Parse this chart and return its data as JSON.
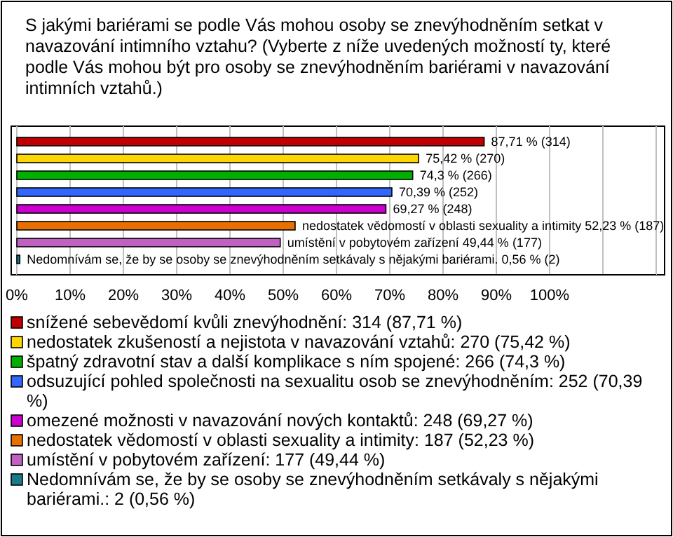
{
  "chart_data": {
    "type": "bar",
    "orientation": "horizontal",
    "title": "S jakými bariérami se podle Vás mohou osoby se znevýhodněním setkat v navazování intimního vztahu? (Vyberte z níže uvedených možností ty, které podle Vás mohou být pro osoby se znevýhodněním bariérami v navazování intimních vztahů.)",
    "categories": [
      null
    ],
    "xlim": [
      0,
      120
    ],
    "xticks": [
      {
        "value": 0,
        "label": "0%"
      },
      {
        "value": 10,
        "label": "10%"
      },
      {
        "value": 20,
        "label": "20%"
      },
      {
        "value": 30,
        "label": "30%"
      },
      {
        "value": 40,
        "label": "40%"
      },
      {
        "value": 50,
        "label": "50%"
      },
      {
        "value": 60,
        "label": "60%"
      },
      {
        "value": 70,
        "label": "70%"
      },
      {
        "value": 80,
        "label": "80%"
      },
      {
        "value": 90,
        "label": "90%"
      },
      {
        "value": 100,
        "label": "100%"
      },
      {
        "value": 110,
        "label": null
      },
      {
        "value": 120,
        "label": null
      }
    ],
    "grid": "x",
    "legend": "bottom",
    "series": [
      {
        "name": "snížené sebevědomí kvůli znevýhodnění: 314 (87,71 %)",
        "color": "#c00000",
        "values": [
          87.71
        ],
        "value_labels": [
          "87,71 % (314)"
        ]
      },
      {
        "name": "nedostatek zkušeností a nejistota v navazování vztahů: 270 (75,42 %)",
        "color": "#ffd700",
        "values": [
          75.42
        ],
        "value_labels": [
          "75,42 % (270)"
        ]
      },
      {
        "name": "špatný zdravotní stav a další komplikace s ním spojené: 266 (74,3 %)",
        "color": "#00b000",
        "values": [
          74.3
        ],
        "value_labels": [
          "74,3 % (266)"
        ]
      },
      {
        "name": "odsuzující pohled společnosti na sexualitu osob se znevýhodněním: 252 (70,39 %)",
        "color": "#3366ff",
        "values": [
          70.39
        ],
        "value_labels": [
          "70,39 % (252)"
        ]
      },
      {
        "name": "omezené možnosti v navazování nových kontaktů: 248 (69,27 %)",
        "color": "#cc00cc",
        "values": [
          69.27
        ],
        "value_labels": [
          "69,27 % (248)"
        ]
      },
      {
        "name": "nedostatek vědomostí v oblasti sexuality a intimity: 187 (52,23 %)",
        "color": "#e87000",
        "values": [
          52.23
        ],
        "value_labels": [
          "nedostatek vědomostí v oblasti sexuality a intimity 52,23 % (187)"
        ]
      },
      {
        "name": "umístění v pobytovém zařízení: 177 (49,44 %)",
        "color": "#c060c0",
        "values": [
          49.44
        ],
        "value_labels": [
          "umístění v pobytovém zařízení 49,44 % (177)"
        ]
      },
      {
        "name": "Nedomnívám se, že by se osoby se znevýhodněním setkávaly s nějakými bariérami.: 2 (0,56 %)",
        "color": "#1a7a8a",
        "values": [
          0.56
        ],
        "value_labels": [
          "Nedomnívám se, že by se osoby se znevýhodněním setkávaly s nějakými bariérami. 0,56 % (2)"
        ]
      }
    ]
  }
}
